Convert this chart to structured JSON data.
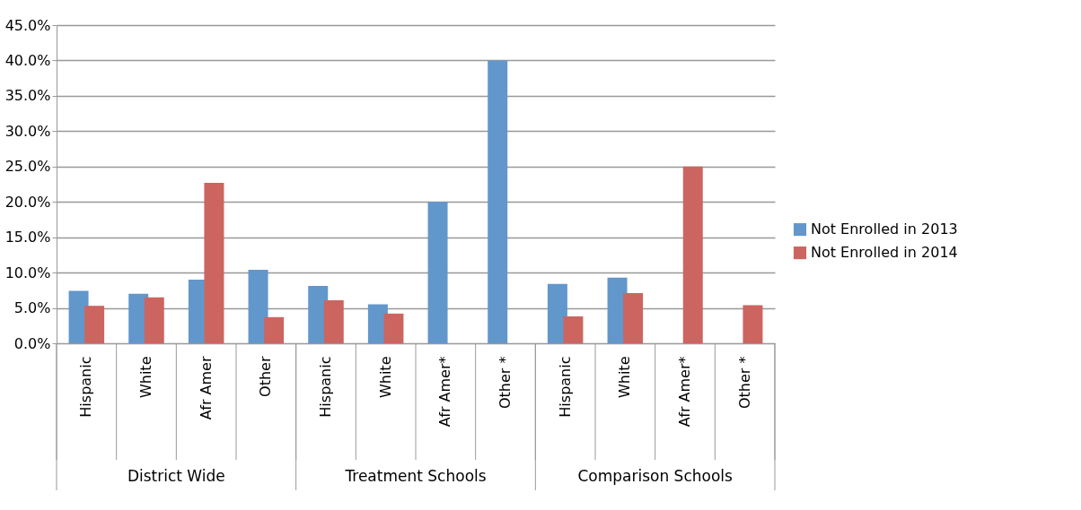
{
  "chart_data": {
    "type": "bar",
    "categories": [
      "Hispanic",
      "White",
      "Afr Amer",
      "Other",
      "Hispanic",
      "White",
      "Afr Amer*",
      "Other *",
      "Hispanic",
      "White",
      "Afr Amer*",
      "Other *"
    ],
    "annotations": [
      "District Wide",
      "Treatment Schools",
      "Comparison Schools"
    ],
    "series": [
      {
        "name": "Not Enrolled in 2013",
        "color": "#6297cc",
        "values": [
          7.4,
          7.0,
          9.0,
          10.4,
          8.1,
          5.5,
          20.0,
          40.0,
          8.4,
          9.3,
          null,
          null
        ]
      },
      {
        "name": "Not Enrolled in 2014",
        "color": "#cc6560",
        "values": [
          5.3,
          6.5,
          22.7,
          3.7,
          6.1,
          4.2,
          null,
          null,
          3.8,
          7.1,
          25.0,
          5.4
        ]
      }
    ],
    "ylim": [
      0,
      45
    ],
    "yticks": [
      {
        "value": 0,
        "label": "0.0%"
      },
      {
        "value": 5,
        "label": "5.0%"
      },
      {
        "value": 10,
        "label": "10.0%"
      },
      {
        "value": 15,
        "label": "15.0%"
      },
      {
        "value": 20,
        "label": "20.0%"
      },
      {
        "value": 25,
        "label": "25.0%"
      },
      {
        "value": 30,
        "label": "30.0%"
      },
      {
        "value": 35,
        "label": "35.0%"
      },
      {
        "value": 40,
        "label": "40.0%"
      },
      {
        "value": 45,
        "label": "45.0%"
      }
    ],
    "grid": "y",
    "legend": "right"
  }
}
